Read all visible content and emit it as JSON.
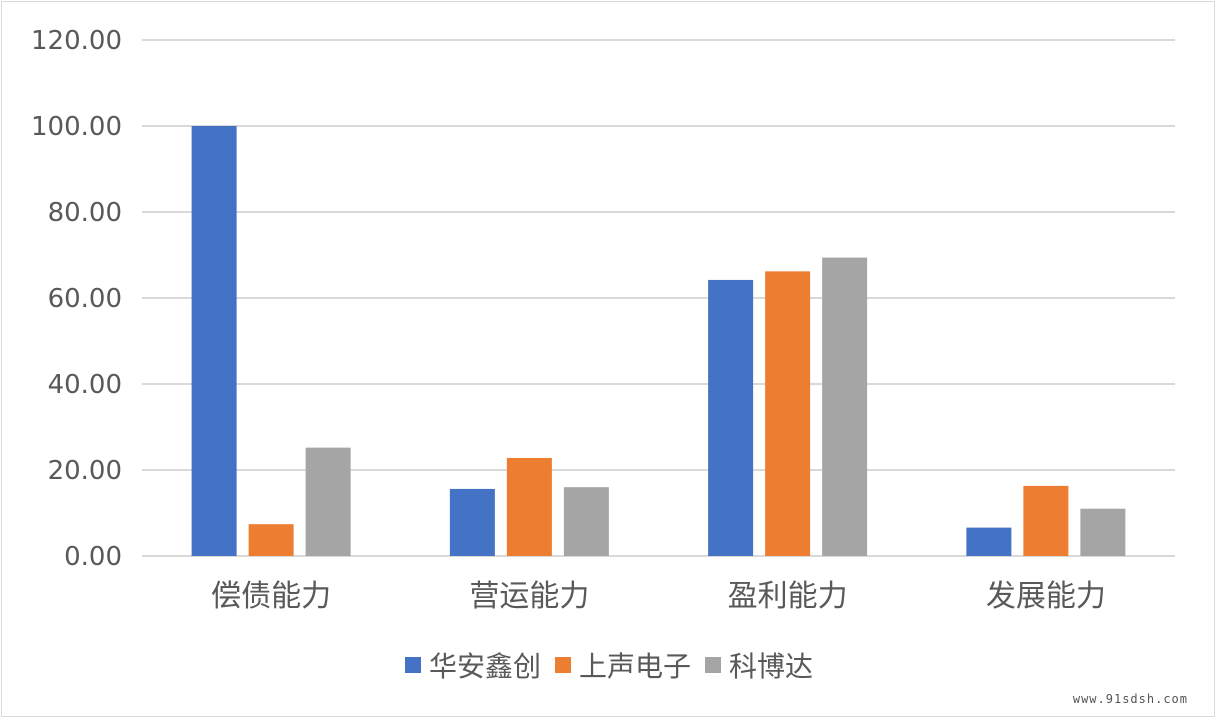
{
  "chart_data": {
    "type": "bar",
    "categories": [
      "偿债能力",
      "营运能力",
      "盈利能力",
      "发展能力"
    ],
    "series": [
      {
        "name": "华安鑫创",
        "color": "#4472C4",
        "values": [
          100.0,
          15.6,
          64.2,
          6.6
        ]
      },
      {
        "name": "上声电子",
        "color": "#ED7D31",
        "values": [
          7.4,
          22.8,
          66.2,
          16.3
        ]
      },
      {
        "name": "科博达",
        "color": "#A5A5A5",
        "values": [
          25.2,
          16.0,
          69.4,
          11.0
        ]
      }
    ],
    "ylim": [
      0,
      120
    ],
    "yticks": [
      0,
      20,
      40,
      60,
      80,
      100,
      120
    ],
    "ytick_labels": [
      "0.00",
      "20.00",
      "40.00",
      "60.00",
      "80.00",
      "100.00",
      "120.00"
    ],
    "grid": true,
    "legend_position": "bottom"
  },
  "watermark": "www.91sdsh.com",
  "colors": {
    "gridline": "#d9d9d9",
    "axis_text": "#595959"
  }
}
